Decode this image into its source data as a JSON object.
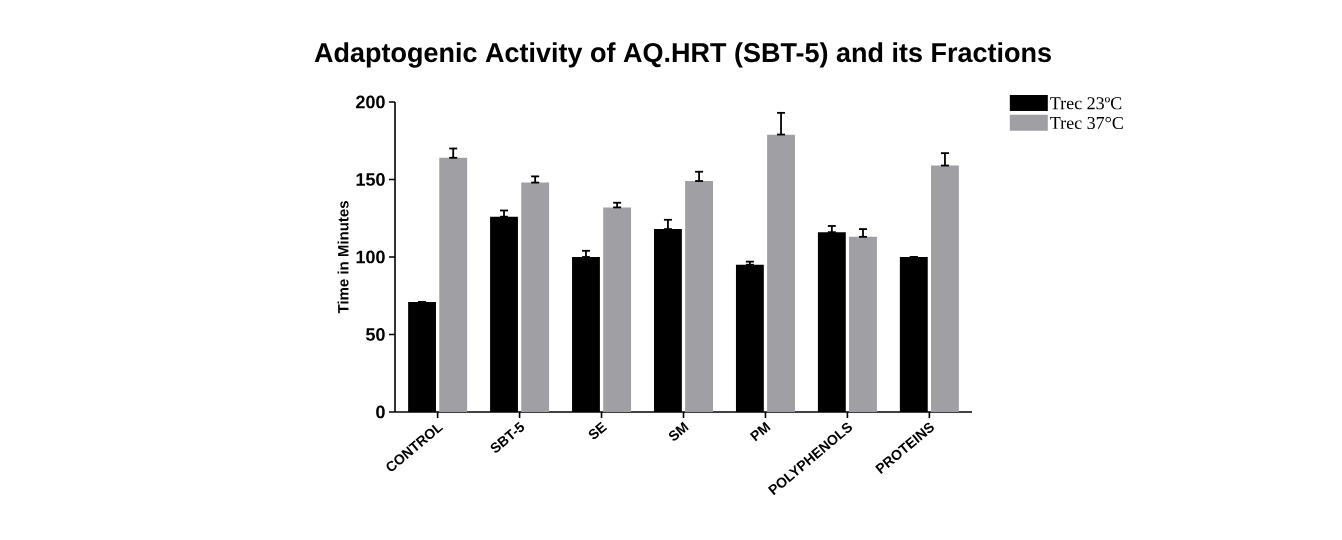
{
  "chart_data": {
    "type": "bar",
    "title": "Adaptogenic Activity of AQ.HRT (SBT-5) and its Fractions",
    "ylabel": "Time in Minutes",
    "categories": [
      "CONTROL",
      "SBT-5",
      "SE",
      "SM",
      "PM",
      "POLYPHENOLS",
      "PROTEINS"
    ],
    "series": [
      {
        "name": "Trec 23ºC",
        "color": "#000000",
        "values": [
          71,
          126,
          100,
          118,
          95,
          116,
          100
        ],
        "errors": [
          [
            71,
            71
          ],
          [
            126,
            130
          ],
          [
            100,
            104
          ],
          [
            118,
            124
          ],
          [
            95,
            97
          ],
          [
            116,
            120
          ],
          [
            100,
            100
          ]
        ]
      },
      {
        "name": "Trec 37°C",
        "color": "#a0a0a4",
        "values": [
          164,
          148,
          132,
          149,
          179,
          113,
          159
        ],
        "errors": [
          [
            164,
            170
          ],
          [
            148,
            152
          ],
          [
            132,
            135
          ],
          [
            149,
            155
          ],
          [
            179,
            193
          ],
          [
            113,
            118
          ],
          [
            159,
            167
          ]
        ]
      }
    ],
    "ylim": [
      0,
      200
    ],
    "yticks": [
      0,
      50,
      100,
      150,
      200
    ],
    "grid": false,
    "legend": "top right"
  }
}
